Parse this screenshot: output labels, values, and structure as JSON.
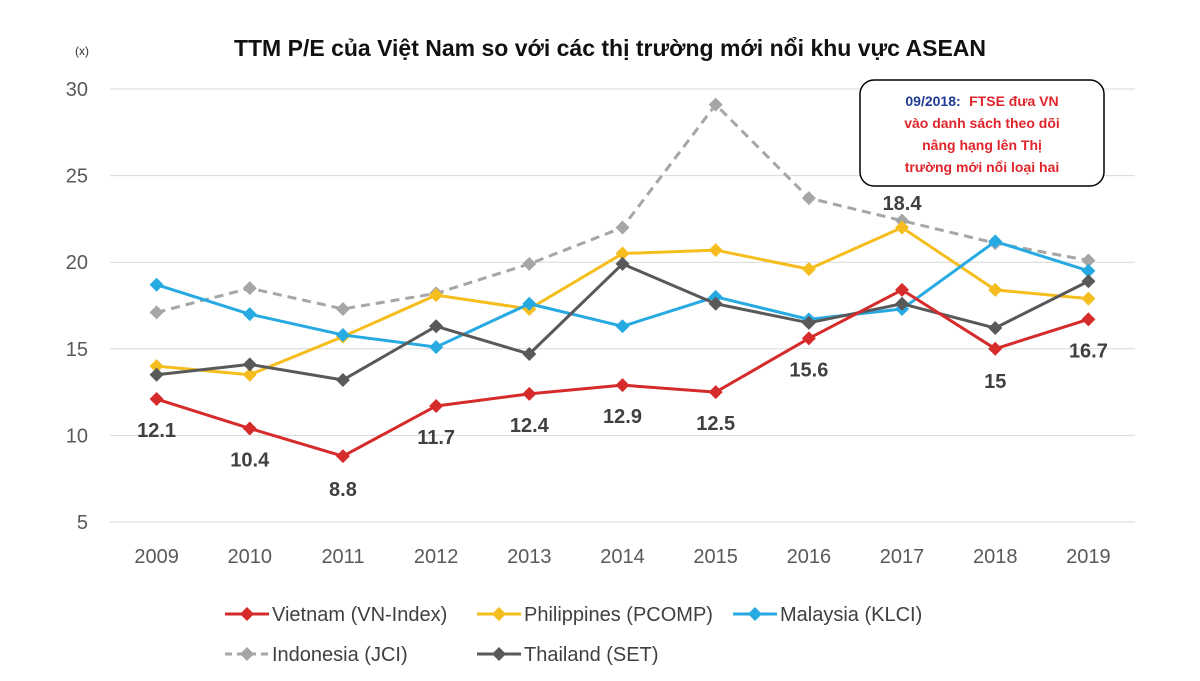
{
  "unit_label": "(x)",
  "chart_data": {
    "type": "line",
    "title": "TTM P/E của Việt Nam so với các thị trường mới nổi khu vực ASEAN",
    "xlabel": "",
    "ylabel": "",
    "x": [
      "2009",
      "2010",
      "2011",
      "2012",
      "2013",
      "2014",
      "2015",
      "2016",
      "2017",
      "2018",
      "2019"
    ],
    "ylim": [
      5,
      30
    ],
    "yticks": [
      5,
      10,
      15,
      20,
      25,
      30
    ],
    "grid": "horizontal",
    "legend_position": "bottom",
    "series": [
      {
        "name": "Vietnam (VN-Index)",
        "color": "#d62b2b",
        "dash": false,
        "values": [
          12.1,
          10.4,
          8.8,
          11.7,
          12.4,
          12.9,
          12.5,
          15.6,
          18.4,
          15,
          16.7
        ],
        "labels": [
          "12.1",
          "10.4",
          "8.8",
          "11.7",
          "12.4",
          "12.9",
          "12.5",
          "15.6",
          "18.4",
          "15",
          "16.7"
        ]
      },
      {
        "name": "Philippines (PCOMP)",
        "color": "#f5be1e",
        "dash": false,
        "values": [
          14.0,
          13.5,
          15.7,
          18.1,
          17.3,
          20.5,
          20.7,
          19.6,
          22.0,
          18.4,
          17.9
        ]
      },
      {
        "name": "Malaysia (KLCI)",
        "color": "#27aae1",
        "dash": false,
        "values": [
          18.7,
          17.0,
          15.8,
          15.1,
          17.6,
          16.3,
          18.0,
          16.7,
          17.3,
          21.2,
          19.5
        ]
      },
      {
        "name": "Indonesia (JCI)",
        "color": "#a6a6a6",
        "dash": true,
        "values": [
          17.1,
          18.5,
          17.3,
          18.2,
          19.9,
          22.0,
          29.1,
          23.7,
          22.4,
          21.1,
          20.1
        ]
      },
      {
        "name": "Thailand (SET)",
        "color": "#595959",
        "dash": false,
        "values": [
          13.5,
          14.1,
          13.2,
          16.3,
          14.7,
          19.9,
          17.6,
          16.5,
          17.6,
          16.2,
          18.9
        ]
      }
    ],
    "annotation": {
      "date": "09/2018:",
      "lines": [
        "FTSE đưa VN",
        "vào danh sách theo dõi",
        "nâng hạng lên Thị",
        "trường mới nổi loại hai"
      ]
    }
  }
}
